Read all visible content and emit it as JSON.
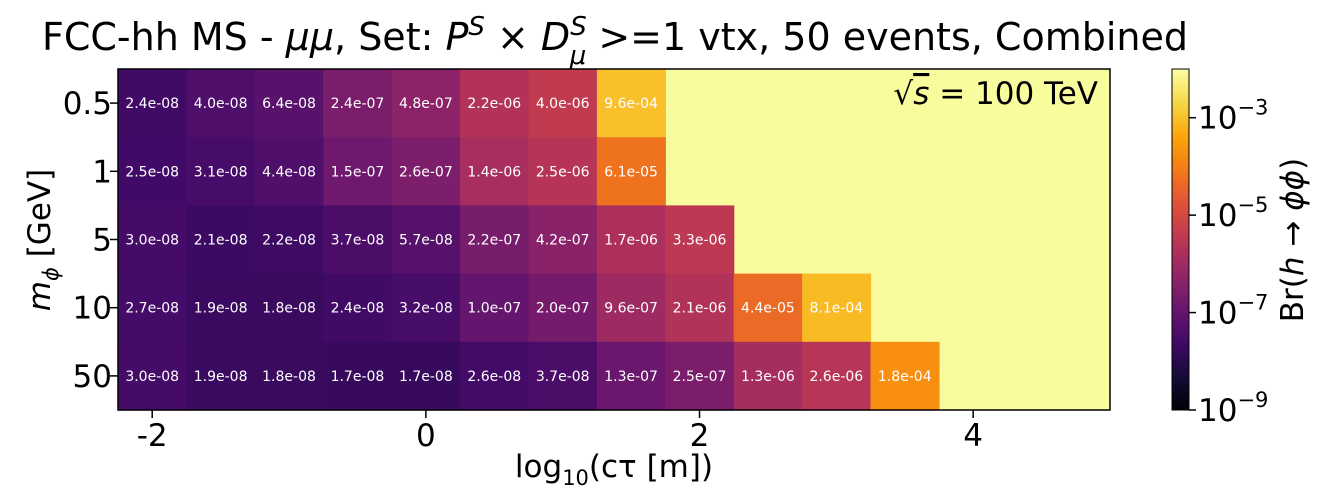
{
  "chart_data": {
    "type": "heatmap",
    "title": {
      "prefix": "FCC-hh MS - ",
      "channel": "μμ",
      "set_prefix": ", Set: ",
      "P": "P",
      "P_sup": "S",
      "times": " × ",
      "D": "D",
      "D_sup": "S",
      "D_sub": "μ",
      "suffix": " >=1 vtx, 50 events, Combined"
    },
    "xlabel": {
      "pre": "log",
      "sub": "10",
      "post": "(cτ [m])"
    },
    "ylabel": {
      "m": "m",
      "sub": "ϕ",
      "post": " [GeV]"
    },
    "annotation": {
      "sqrt": "√",
      "s": "s",
      "post": " = 100 TeV"
    },
    "x_ticks": [
      {
        "value": -2,
        "label": "-2"
      },
      {
        "value": 0,
        "label": "0"
      },
      {
        "value": 2,
        "label": "2"
      },
      {
        "value": 4,
        "label": "4"
      }
    ],
    "x_cell_centers": [
      -2,
      -1.5,
      -1,
      -0.5,
      0,
      0.5,
      1,
      1.5,
      2,
      2.5,
      3,
      3.5,
      4,
      4.5
    ],
    "xlim": [
      -2.25,
      5.0
    ],
    "y_categories": [
      "0.5",
      "1",
      "5",
      "10",
      "50"
    ],
    "values": [
      [
        "2.4e-08",
        "4.0e-08",
        "6.4e-08",
        "2.4e-07",
        "4.8e-07",
        "2.2e-06",
        "4.0e-06",
        "9.6e-04",
        null,
        null,
        null,
        null,
        null,
        null
      ],
      [
        "2.5e-08",
        "3.1e-08",
        "4.4e-08",
        "1.5e-07",
        "2.6e-07",
        "1.4e-06",
        "2.5e-06",
        "6.1e-05",
        null,
        null,
        null,
        null,
        null,
        null
      ],
      [
        "3.0e-08",
        "2.1e-08",
        "2.2e-08",
        "3.7e-08",
        "5.7e-08",
        "2.2e-07",
        "4.2e-07",
        "1.7e-06",
        "3.3e-06",
        null,
        null,
        null,
        null,
        null
      ],
      [
        "2.7e-08",
        "1.9e-08",
        "1.8e-08",
        "2.4e-08",
        "3.2e-08",
        "1.0e-07",
        "2.0e-07",
        "9.6e-07",
        "2.1e-06",
        "4.4e-05",
        "8.1e-04",
        null,
        null,
        null
      ],
      [
        "3.0e-08",
        "1.9e-08",
        "1.8e-08",
        "1.7e-08",
        "1.7e-08",
        "2.6e-08",
        "3.7e-08",
        "1.3e-07",
        "2.5e-07",
        "1.3e-06",
        "2.6e-06",
        "1.8e-04",
        null,
        null
      ]
    ],
    "background_color": "#f8fc9d",
    "colorbar": {
      "label": {
        "pre": "Br(",
        "h": "h",
        "arrow": " → ",
        "phi": "ϕϕ",
        "post": ")"
      },
      "scale": "log",
      "range": [
        1e-09,
        0.01
      ],
      "colormap": "inferno",
      "ticks": [
        {
          "value": 0.001,
          "base": "10",
          "exp": "−3"
        },
        {
          "value": 1e-05,
          "base": "10",
          "exp": "−5"
        },
        {
          "value": 1e-07,
          "base": "10",
          "exp": "−7"
        },
        {
          "value": 1e-09,
          "base": "10",
          "exp": "−9"
        }
      ]
    }
  }
}
